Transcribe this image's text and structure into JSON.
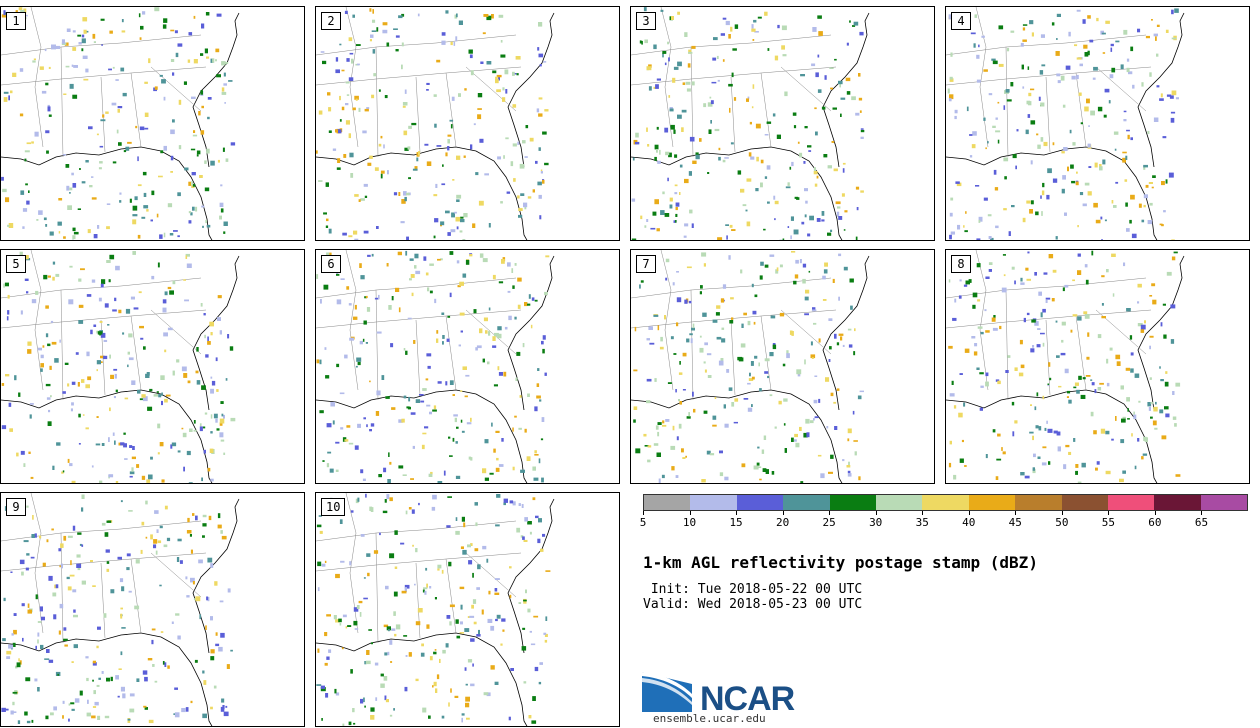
{
  "panels": [
    {
      "label": "1"
    },
    {
      "label": "2"
    },
    {
      "label": "3"
    },
    {
      "label": "4"
    },
    {
      "label": "5"
    },
    {
      "label": "6"
    },
    {
      "label": "7"
    },
    {
      "label": "8"
    },
    {
      "label": "9"
    },
    {
      "label": "10"
    }
  ],
  "colorbar": {
    "colors": [
      "#a5a5a5",
      "#b3bbea",
      "#5a5ed8",
      "#4f9499",
      "#0a7d12",
      "#b9dbb6",
      "#eed962",
      "#e9ab18",
      "#b97e2c",
      "#8b5131",
      "#ef4f7a",
      "#6a1636",
      "#a84ba3"
    ],
    "tick_labels": [
      "5",
      "10",
      "15",
      "20",
      "25",
      "30",
      "35",
      "40",
      "45",
      "50",
      "55",
      "60",
      "65"
    ]
  },
  "title": "1-km AGL reflectivity postage stamp (dBZ)",
  "init": " Init: Tue 2018-05-22 00 UTC",
  "valid": "Valid: Wed 2018-05-23 00 UTC",
  "logo": {
    "text": "NCAR",
    "url": "ensemble.ucar.edu"
  }
}
